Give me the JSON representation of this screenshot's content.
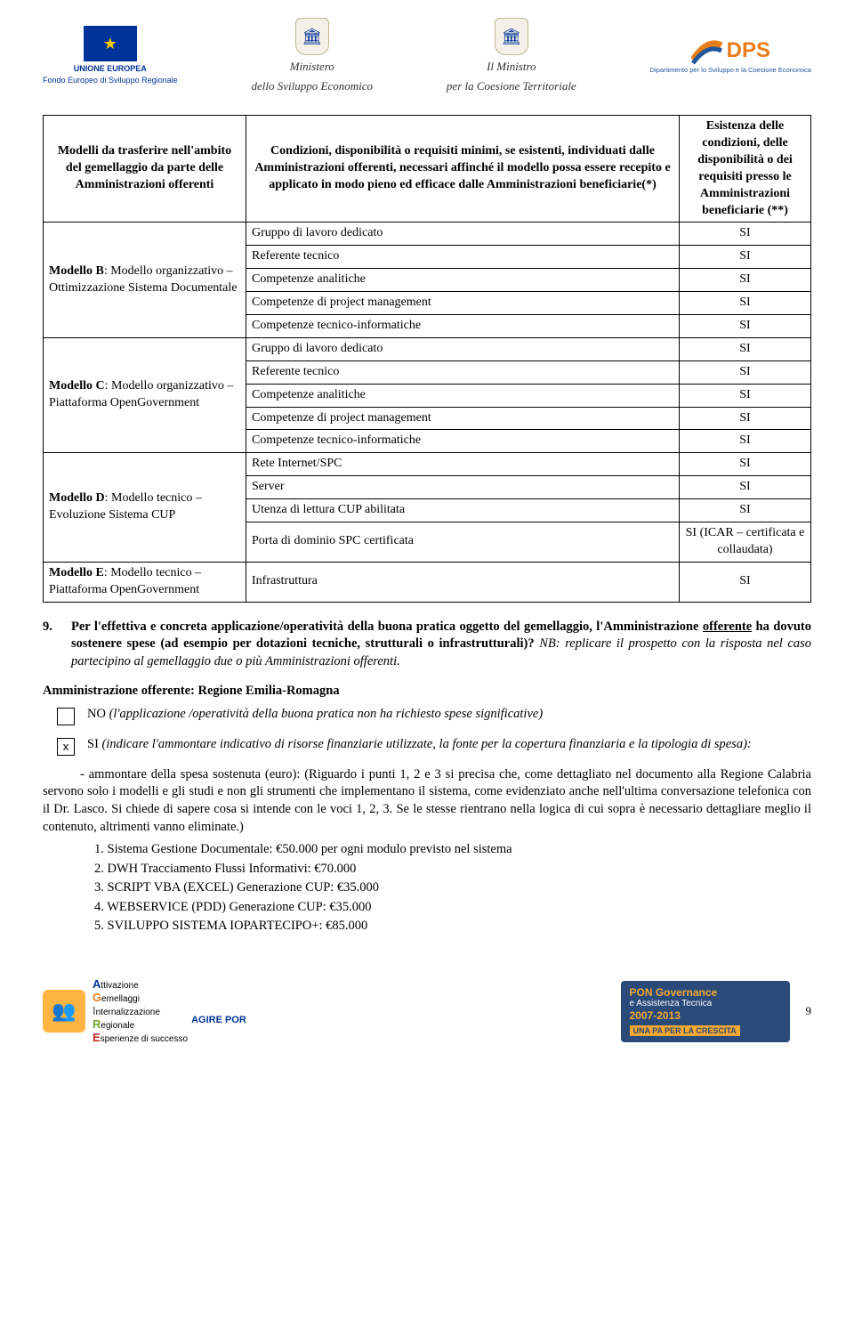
{
  "header": {
    "eu_label1": "UNIONE EUROPEA",
    "eu_label2": "Fondo Europeo di Sviluppo Regionale",
    "min1_line1": "Ministero",
    "min1_line2": "dello Sviluppo Economico",
    "min2_line1": "Il Ministro",
    "min2_line2": "per la Coesione Territoriale",
    "dps": "DPS",
    "dps_sub": "Dipartimento per lo Sviluppo e la Coesione Economica"
  },
  "table": {
    "head_col1": "Modelli da trasferire nell'ambito del gemellaggio da parte delle Amministrazioni offerenti",
    "head_col2": "Condizioni, disponibilità o requisiti minimi, se esistenti, individuati dalle Amministrazioni offerenti, necessari affinché il modello possa essere recepito e applicato in modo pieno ed efficace dalle Amministrazioni beneficiarie(*)",
    "head_col3": "Esistenza delle condizioni, delle disponibilità o dei requisiti presso le Amministrazioni beneficiarie (**)",
    "groupB_bold": "Modello B",
    "groupB_rest": ": Modello organizzativo – Ottimizzazione Sistema Documentale",
    "groupC_bold": "Modello C",
    "groupC_rest": ": Modello organizzativo – Piattaforma OpenGovernment",
    "groupD_bold": "Modello D",
    "groupD_rest": ": Modello tecnico – Evoluzione Sistema CUP",
    "groupE_bold": "Modello E",
    "groupE_rest": ": Modello tecnico – Piattaforma OpenGovernment",
    "rows": {
      "b1": {
        "c": "Gruppo di lavoro dedicato",
        "v": "SI"
      },
      "b2": {
        "c": "Referente tecnico",
        "v": "SI"
      },
      "b3": {
        "c": "Competenze analitiche",
        "v": "SI"
      },
      "b4": {
        "c": "Competenze di project management",
        "v": "SI"
      },
      "b5": {
        "c": "Competenze tecnico-informatiche",
        "v": "SI"
      },
      "c1": {
        "c": "Gruppo di lavoro dedicato",
        "v": "SI"
      },
      "c2": {
        "c": "Referente tecnico",
        "v": "SI"
      },
      "c3": {
        "c": "Competenze analitiche",
        "v": "SI"
      },
      "c4": {
        "c": "Competenze di project management",
        "v": "SI"
      },
      "c5": {
        "c": "Competenze tecnico-informatiche",
        "v": "SI"
      },
      "d1": {
        "c": "Rete Internet/SPC",
        "v": "SI"
      },
      "d2": {
        "c": "Server",
        "v": "SI"
      },
      "d3": {
        "c": "Utenza di lettura CUP abilitata",
        "v": "SI"
      },
      "d4": {
        "c": "Porta di dominio SPC certificata",
        "v": "SI (ICAR – certificata e collaudata)"
      },
      "e1": {
        "c": "Infrastruttura",
        "v": "SI"
      }
    }
  },
  "q9": {
    "num": "9.",
    "text_pre": "Per l'effettiva e concreta applicazione/operatività della buona pratica oggetto del gemellaggio, l'Amministrazione ",
    "offerente": "offerente",
    "text_mid": " ha dovuto sostenere spese (ad esempio per dotazioni tecniche, strutturali o infrastrutturali)? ",
    "nb": "NB: replicare il prospetto con la risposta nel caso partecipino al gemellaggio due o più Amministrazioni offerenti."
  },
  "admin_line": "Amministrazione offerente: Regione Emilia-Romagna",
  "opt_no": "NO (l'applicazione /operatività della buona pratica non ha richiesto spese significative)",
  "opt_si_pre": "SI ",
  "opt_si_rest": "(indicare l'ammontare indicativo di risorse finanziarie utilizzate, la fonte per la copertura finanziaria e la tipologia di spesa):",
  "check_x": "x",
  "body_para": "- ammontare della spesa sostenuta (euro): (Riguardo i punti 1, 2 e 3 si precisa che, come dettagliato nel documento alla Regione Calabria servono solo i modelli e gli studi e non gli strumenti che implementano il sistema, come evidenziato anche nell'ultima conversazione telefonica con il Dr. Lasco. Si chiede di sapere cosa si intende con le voci 1, 2, 3. Se le stesse rientrano nella logica di cui sopra è necessario dettagliare meglio il contenuto, altrimenti vanno eliminate.)",
  "list": {
    "i1": "1.   Sistema Gestione Documentale: €50.000 per ogni modulo previsto nel sistema",
    "i2": "2.   DWH Tracciamento Flussi Informativi: €70.000",
    "i3": "3.   SCRIPT VBA (EXCEL) Generazione CUP: €35.000",
    "i4": "4.   WEBSERVICE (PDD) Generazione CUP: €35.000",
    "i5": "5.   SVILUPPO SISTEMA IOPARTECIPO+: €85.000"
  },
  "footer": {
    "agire_por": "AGIRE POR",
    "a_t": "ttivazione",
    "g_t": "emellaggi",
    "i_t": "nternalizzazione",
    "r_t": "egionale",
    "e_t": "sperienze di successo",
    "pon_line1": "PON Governance",
    "pon_line2": "e Assistenza Tecnica",
    "pon_years": "2007-2013",
    "pon_tag": "UNA PA PER LA CRESCITA",
    "page": "9"
  }
}
